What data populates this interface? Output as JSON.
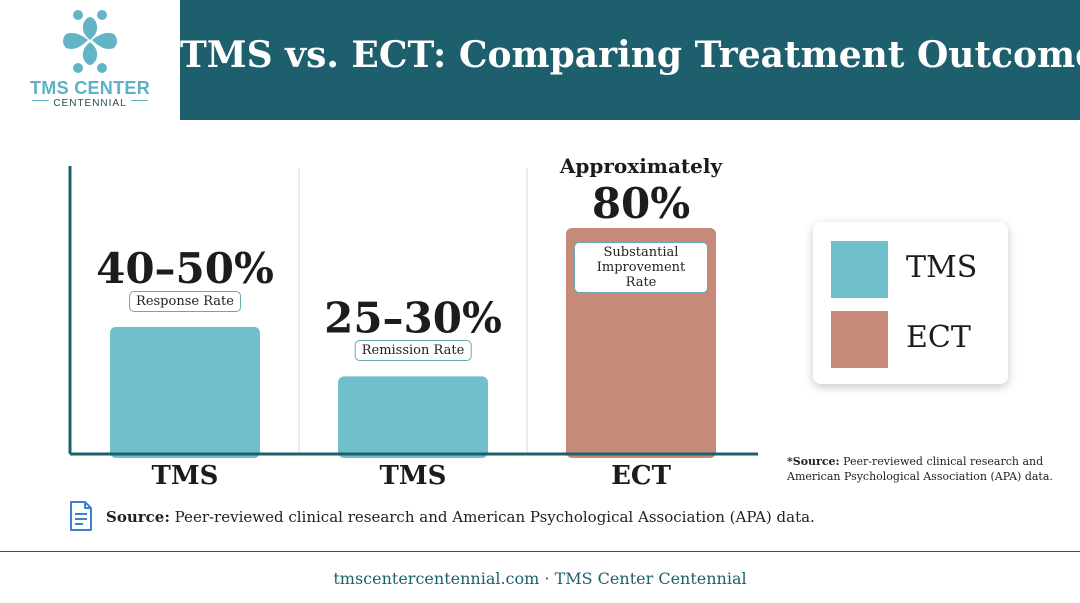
{
  "header": {
    "logo_text": "TMS CENTER",
    "logo_subtext": "CENTENNIAL",
    "title": "TMS vs. ECT: Comparing Treatment Outcomes"
  },
  "colors": {
    "header_bg": "#1e5f6e",
    "tms": "#6fbfcc",
    "ect": "#c58a78",
    "logo_accent": "#5bb2c4"
  },
  "chart_data": {
    "type": "bar",
    "categories": [
      "TMS",
      "TMS",
      "ECT"
    ],
    "bars": [
      {
        "category": "TMS",
        "group": "TMS",
        "range": [
          40,
          50
        ],
        "value": 45,
        "value_label": "40–50%",
        "metric_label": "Response Rate",
        "label_prefix": ""
      },
      {
        "category": "TMS",
        "group": "TMS",
        "range": [
          25,
          30
        ],
        "value": 27.5,
        "value_label": "25–30%",
        "metric_label": "Remission Rate",
        "label_prefix": ""
      },
      {
        "category": "ECT",
        "group": "ECT",
        "value": 80,
        "value_label": "80%",
        "metric_label": "Substantial Improvement Rate",
        "label_prefix": "Approximately"
      }
    ],
    "ylim": [
      0,
      100
    ],
    "grid": false,
    "legend": {
      "position": "right",
      "entries": [
        "TMS",
        "ECT"
      ]
    }
  },
  "footnote": {
    "prefix": "*Source:",
    "text": " Peer-reviewed clinical research and American Psychological Association (APA) data."
  },
  "source": {
    "icon": "document-icon",
    "label": "Source:",
    "text": " Peer-reviewed clinical research and American Psychological Association (APA) data."
  },
  "footer": {
    "text": "tmscentercentennial.com · TMS Center Centennial"
  }
}
